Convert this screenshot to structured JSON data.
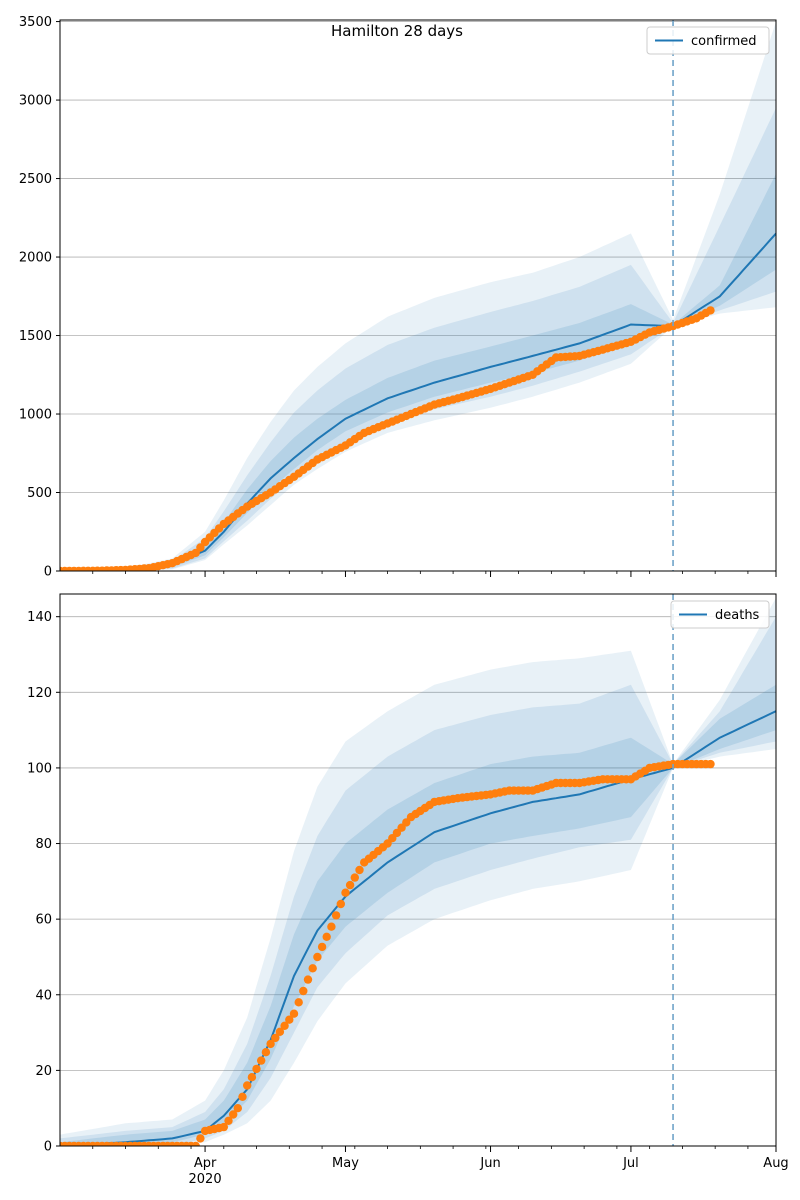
{
  "figure": {
    "title": "Hamilton 28 days"
  },
  "colors": {
    "model": "#1f77b4",
    "observed": "#ff7f0e",
    "band": "#1f77b4",
    "grid": "#b0b0b0",
    "cutoff": "#6fa3c9"
  },
  "chart_data": [
    {
      "type": "line",
      "name": "confirmed",
      "legend_label": "confirmed",
      "legend_position": "top-right",
      "cutoff_date": "Jul 10",
      "xlim": [
        "Mar 1",
        "Aug 1"
      ],
      "ylim": [
        0,
        3510
      ],
      "yticks": [
        0,
        500,
        1000,
        1500,
        2000,
        2500,
        3000,
        3500
      ],
      "xticks": [
        {
          "label": "Apr",
          "sub": "2020"
        },
        {
          "label": "May",
          "sub": ""
        },
        {
          "label": "Jun",
          "sub": ""
        },
        {
          "label": "Jul",
          "sub": ""
        },
        {
          "label": "Aug",
          "sub": ""
        }
      ],
      "grid": "y",
      "model_median": {
        "x": [
          "Mar 1",
          "Mar 15",
          "Mar 25",
          "Apr 1",
          "Apr 5",
          "Apr 10",
          "Apr 15",
          "Apr 20",
          "Apr 25",
          "May 1",
          "May 10",
          "May 20",
          "Jun 1",
          "Jun 10",
          "Jun 20",
          "Jul 1",
          "Jul 10",
          "Jul 20",
          "Aug 1"
        ],
        "y": [
          0,
          5,
          40,
          130,
          250,
          430,
          590,
          720,
          840,
          970,
          1100,
          1200,
          1300,
          1370,
          1450,
          1570,
          1560,
          1750,
          2150
        ]
      },
      "bands": [
        {
          "label": "outer",
          "lower": [
            0,
            0,
            10,
            70,
            170,
            290,
            420,
            550,
            650,
            760,
            880,
            960,
            1040,
            1110,
            1200,
            1320,
            1560,
            1640,
            1680
          ],
          "upper": [
            0,
            20,
            80,
            250,
            450,
            720,
            950,
            1150,
            1300,
            1450,
            1620,
            1740,
            1840,
            1900,
            2000,
            2150,
            1600,
            2400,
            3500
          ]
        },
        {
          "label": "second",
          "lower": [
            0,
            0,
            15,
            80,
            190,
            320,
            460,
            590,
            700,
            820,
            940,
            1030,
            1110,
            1180,
            1270,
            1380,
            1560,
            1660,
            1780
          ],
          "upper": [
            0,
            14,
            65,
            210,
            380,
            610,
            820,
            1010,
            1150,
            1290,
            1440,
            1550,
            1650,
            1720,
            1810,
            1950,
            1580,
            2200,
            2950
          ]
        },
        {
          "label": "inner",
          "lower": [
            0,
            2,
            25,
            100,
            215,
            370,
            520,
            650,
            770,
            890,
            1010,
            1110,
            1200,
            1260,
            1340,
            1460,
            1560,
            1690,
            1920
          ],
          "upper": [
            0,
            9,
            55,
            170,
            310,
            520,
            700,
            850,
            970,
            1090,
            1230,
            1340,
            1430,
            1500,
            1580,
            1700,
            1570,
            1820,
            2530
          ]
        }
      ],
      "observed": {
        "x": [
          "Mar 1",
          "Mar 10",
          "Mar 15",
          "Mar 20",
          "Mar 25",
          "Mar 30",
          "Apr 1",
          "Apr 5",
          "Apr 10",
          "Apr 15",
          "Apr 20",
          "Apr 25",
          "May 1",
          "May 5",
          "May 10",
          "May 15",
          "May 20",
          "May 25",
          "Jun 1",
          "Jun 5",
          "Jun 10",
          "Jun 15",
          "Jun 20",
          "Jun 25",
          "Jul 1",
          "Jul 5",
          "Jul 10",
          "Jul 15",
          "Jul 18"
        ],
        "y": [
          0,
          2,
          7,
          18,
          50,
          115,
          185,
          300,
          410,
          500,
          600,
          710,
          800,
          880,
          940,
          1000,
          1060,
          1100,
          1160,
          1200,
          1250,
          1360,
          1370,
          1410,
          1460,
          1520,
          1560,
          1610,
          1660
        ]
      }
    },
    {
      "type": "line",
      "name": "deaths",
      "legend_label": "deaths",
      "legend_position": "top-right",
      "cutoff_date": "Jul 10",
      "xlim": [
        "Mar 1",
        "Aug 1"
      ],
      "ylim": [
        0,
        146
      ],
      "yticks": [
        0,
        20,
        40,
        60,
        80,
        100,
        120,
        140
      ],
      "xticks": [
        {
          "label": "Apr",
          "sub": "2020"
        },
        {
          "label": "May",
          "sub": ""
        },
        {
          "label": "Jun",
          "sub": ""
        },
        {
          "label": "Jul",
          "sub": ""
        },
        {
          "label": "Aug",
          "sub": ""
        }
      ],
      "grid": "y",
      "model_median": {
        "x": [
          "Mar 1",
          "Mar 15",
          "Mar 25",
          "Apr 1",
          "Apr 5",
          "Apr 10",
          "Apr 15",
          "Apr 20",
          "Apr 25",
          "May 1",
          "May 10",
          "May 20",
          "Jun 1",
          "Jun 10",
          "Jun 20",
          "Jul 1",
          "Jul 10",
          "Jul 20",
          "Aug 1"
        ],
        "y": [
          0,
          1,
          2,
          4,
          8,
          15,
          28,
          45,
          57,
          66,
          75,
          83,
          88,
          91,
          93,
          97,
          100,
          108,
          115
        ]
      },
      "bands": [
        {
          "label": "outer",
          "lower": [
            0,
            0,
            0,
            1,
            3,
            6,
            12,
            22,
            33,
            43,
            53,
            60,
            65,
            68,
            70,
            73,
            100,
            103,
            105
          ],
          "upper": [
            3,
            6,
            7,
            12,
            20,
            34,
            55,
            78,
            95,
            107,
            115,
            122,
            126,
            128,
            129,
            131,
            101,
            118,
            145
          ]
        },
        {
          "label": "second",
          "lower": [
            0,
            0,
            0,
            2,
            4,
            9,
            18,
            30,
            42,
            51,
            61,
            68,
            73,
            76,
            79,
            81,
            100,
            104,
            107
          ],
          "upper": [
            2,
            4,
            5,
            9,
            15,
            27,
            45,
            66,
            82,
            94,
            103,
            110,
            114,
            116,
            117,
            122,
            101,
            115,
            140
          ]
        },
        {
          "label": "inner",
          "lower": [
            0,
            0,
            1,
            3,
            6,
            12,
            23,
            37,
            49,
            58,
            67,
            75,
            80,
            82,
            84,
            87,
            100,
            105,
            110
          ],
          "upper": [
            1,
            3,
            4,
            7,
            12,
            22,
            37,
            56,
            70,
            80,
            89,
            96,
            101,
            103,
            104,
            108,
            101,
            113,
            122
          ]
        }
      ],
      "observed": {
        "x": [
          "Mar 1",
          "Mar 10",
          "Mar 20",
          "Mar 30",
          "Apr 1",
          "Apr 5",
          "Apr 8",
          "Apr 10",
          "Apr 15",
          "Apr 20",
          "Apr 25",
          "Apr 28",
          "May 1",
          "May 5",
          "May 10",
          "May 15",
          "May 20",
          "May 25",
          "Jun 1",
          "Jun 5",
          "Jun 10",
          "Jun 15",
          "Jun 20",
          "Jun 25",
          "Jul 1",
          "Jul 5",
          "Jul 10",
          "Jul 18"
        ],
        "y": [
          0,
          0,
          0,
          0,
          4,
          5,
          10,
          16,
          27,
          35,
          50,
          58,
          67,
          75,
          80,
          87,
          91,
          92,
          93,
          94,
          94,
          96,
          96,
          97,
          97,
          100,
          101,
          101
        ]
      }
    }
  ]
}
